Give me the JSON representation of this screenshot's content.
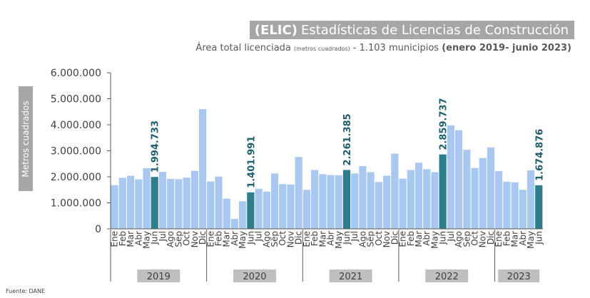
{
  "header": {
    "title_bold": "(ELIC)",
    "title_rest": "Estadísticas de Licencias de Construcción",
    "subtitle_main": "Área total licenciada",
    "subtitle_small": "(metros cuadrados)",
    "subtitle_mid": "- 1.103 municipios",
    "subtitle_bold": "(enero 2019- junio 2023)"
  },
  "source": "Fuente: DANE",
  "colors": {
    "bar": "#a9c8f0",
    "highlight": "#2e7d8c",
    "axis": "#595959",
    "year_box": "#bfbfbf",
    "label": "#1f5f6e"
  },
  "chart_data": {
    "type": "bar",
    "title": "(ELIC) Estadísticas de Licencias de Construcción",
    "subtitle": "Área total licenciada (metros cuadrados) - 1.103 municipios (enero 2019- junio 2023)",
    "ylabel": "Metros cuadrados",
    "xlabel": "",
    "ylim": [
      0,
      6000000
    ],
    "yticks": [
      0,
      1000000,
      2000000,
      3000000,
      4000000,
      5000000,
      6000000
    ],
    "ytick_labels": [
      "0",
      "1.000.000",
      "2.000.000",
      "3.000.000",
      "4.000.000",
      "5.000.000",
      "6.000.000"
    ],
    "grid": false,
    "legend": "none",
    "years": [
      {
        "label": "2019",
        "count": 12
      },
      {
        "label": "2020",
        "count": 12
      },
      {
        "label": "2021",
        "count": 12
      },
      {
        "label": "2022",
        "count": 12
      },
      {
        "label": "2023",
        "count": 6
      }
    ],
    "categories": [
      "Ene",
      "Feb",
      "Mar",
      "Abr",
      "May",
      "Jun",
      "Jul",
      "Ago",
      "Sep",
      "Oct",
      "Nov",
      "Dic",
      "Ene",
      "Feb",
      "Mar",
      "Abr",
      "May",
      "Jun",
      "Jul",
      "Ago",
      "Sep",
      "Oct",
      "Nov",
      "Dic",
      "Ene",
      "Feb",
      "Mar",
      "Abr",
      "May",
      "Jun",
      "Jul",
      "Ago",
      "Sep",
      "Oct",
      "Nov",
      "Dic",
      "Ene",
      "Feb",
      "Mar",
      "Abr",
      "May",
      "Jun",
      "Jul",
      "Ago",
      "Sep",
      "Oct",
      "Nov",
      "Dic",
      "Ene",
      "Feb",
      "Mar",
      "Abr",
      "May",
      "Jun"
    ],
    "values": [
      1680000,
      1960000,
      2040000,
      1900000,
      2330000,
      1994733,
      2190000,
      1920000,
      1910000,
      1970000,
      2230000,
      4600000,
      1820000,
      2010000,
      1160000,
      380000,
      1060000,
      1401991,
      1540000,
      1430000,
      2130000,
      1720000,
      1700000,
      2760000,
      1500000,
      2260000,
      2100000,
      2070000,
      2060000,
      2261385,
      2130000,
      2410000,
      2180000,
      1800000,
      2040000,
      2890000,
      1930000,
      2260000,
      2540000,
      2290000,
      2180000,
      2859737,
      3980000,
      3790000,
      3040000,
      2340000,
      2720000,
      3130000,
      2220000,
      1810000,
      1790000,
      1500000,
      2250000,
      1674876
    ],
    "highlighted_indices": [
      5,
      17,
      29,
      41,
      53
    ],
    "data_labels": [
      {
        "index": 5,
        "text": "1.994.733"
      },
      {
        "index": 17,
        "text": "1.401.991"
      },
      {
        "index": 29,
        "text": "2.261.385"
      },
      {
        "index": 41,
        "text": "2.859.737"
      },
      {
        "index": 53,
        "text": "1.674.876"
      }
    ]
  }
}
